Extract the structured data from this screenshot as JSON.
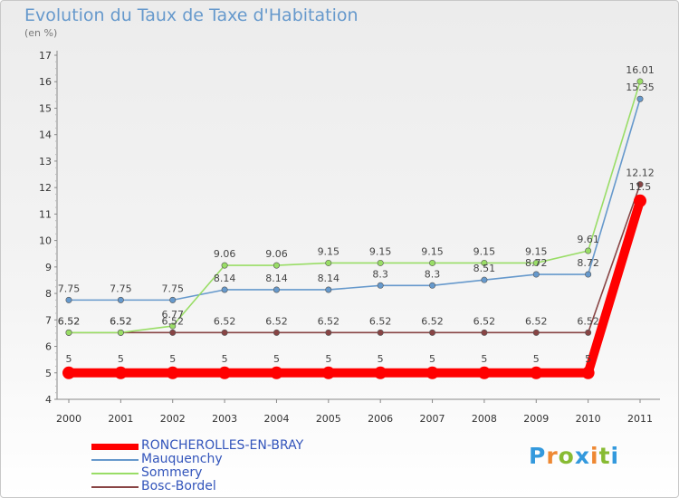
{
  "chart_data": {
    "type": "line",
    "title": "Evolution du Taux de Taxe d'Habitation",
    "subtitle": "(en %)",
    "xlabel": "",
    "ylabel": "",
    "x": [
      "2000",
      "2001",
      "2002",
      "2003",
      "2004",
      "2005",
      "2006",
      "2007",
      "2008",
      "2009",
      "2010",
      "2011"
    ],
    "ylim": [
      4,
      17
    ],
    "yticks": [
      "4",
      "5",
      "6",
      "7",
      "8",
      "9",
      "10",
      "11",
      "12",
      "13",
      "14",
      "15",
      "16",
      "17"
    ],
    "grid": false,
    "legend_position": "bottom-left",
    "series": [
      {
        "name": "RONCHEROLLES-EN-BRAY",
        "color": "#ff0000",
        "values": [
          5,
          5,
          5,
          5,
          5,
          5,
          5,
          5,
          5,
          5,
          5,
          11.5
        ],
        "labels": [
          "5",
          "5",
          "5",
          "5",
          "5",
          "5",
          "5",
          "5",
          "5",
          "5",
          "5",
          "11.5"
        ]
      },
      {
        "name": "Mauquenchy",
        "color": "#6699cc",
        "values": [
          7.75,
          7.75,
          7.75,
          8.14,
          8.14,
          8.14,
          8.3,
          8.3,
          8.51,
          8.72,
          8.72,
          15.35
        ],
        "labels": [
          "7.75",
          "7.75",
          "7.75",
          "8.14",
          "8.14",
          "8.14",
          "8.3",
          "8.3",
          "8.51",
          "8.72",
          "8.72",
          "15.35"
        ]
      },
      {
        "name": "Sommery",
        "color": "#99dd66",
        "values": [
          6.52,
          6.52,
          6.77,
          9.06,
          9.06,
          9.15,
          9.15,
          9.15,
          9.15,
          9.15,
          9.61,
          16.01
        ],
        "labels": [
          "6.52",
          "6.52",
          "6.77",
          "9.06",
          "9.06",
          "9.15",
          "9.15",
          "9.15",
          "9.15",
          "9.15",
          "9.61",
          "16.01"
        ]
      },
      {
        "name": "Bosc-Bordel",
        "color": "#884444",
        "values": [
          6.52,
          6.52,
          6.52,
          6.52,
          6.52,
          6.52,
          6.52,
          6.52,
          6.52,
          6.52,
          6.52,
          12.12
        ],
        "labels": [
          "6.52",
          "6.52",
          "6.52",
          "6.52",
          "6.52",
          "6.52",
          "6.52",
          "6.52",
          "6.52",
          "6.52",
          "6.52",
          "12.12"
        ]
      }
    ]
  },
  "logo": {
    "letters": [
      "P",
      "r",
      "o",
      "x",
      "i",
      "t",
      "i"
    ],
    "colors": [
      "#3399dd",
      "#ee8833",
      "#88bb33",
      "#3399dd",
      "#ee8833",
      "#88bb33",
      "#3399dd"
    ]
  }
}
